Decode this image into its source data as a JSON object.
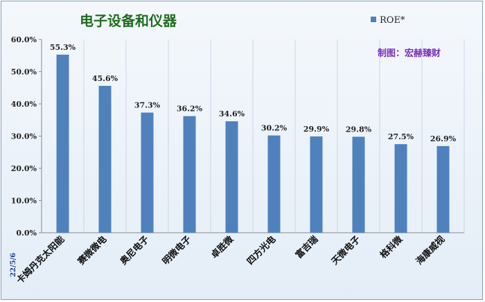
{
  "chart_data": {
    "type": "bar",
    "title": "电子设备和仪器",
    "categories": [
      "卡姆丹克太阳能",
      "赛微微电",
      "奥尼电子",
      "明微电子",
      "卓胜微",
      "四方光电",
      "富吉瑞",
      "天微电子",
      "格科微",
      "海康威视"
    ],
    "series": [
      {
        "name": "ROE*",
        "values": [
          55.3,
          45.6,
          37.3,
          36.2,
          34.6,
          30.2,
          29.9,
          29.8,
          27.5,
          26.9
        ],
        "labels": [
          "55.3%",
          "45.6%",
          "37.3%",
          "36.2%",
          "34.6%",
          "30.2%",
          "29.9%",
          "29.8%",
          "27.5%",
          "26.9%"
        ]
      }
    ],
    "ylim": [
      0,
      60
    ],
    "yticks": [
      0,
      10,
      20,
      30,
      40,
      50,
      60
    ],
    "ytick_labels": [
      "0.0%",
      "10.0%",
      "20.0%",
      "30.0%",
      "40.0%",
      "50.0%",
      "60.0%"
    ],
    "xlabel": "",
    "ylabel": "",
    "grid": "vertical",
    "legend": "top-right",
    "bar_color": "#4f81bd",
    "annotations": {
      "credit": "制图：宏赫臻财",
      "date": "22/5/6"
    }
  }
}
